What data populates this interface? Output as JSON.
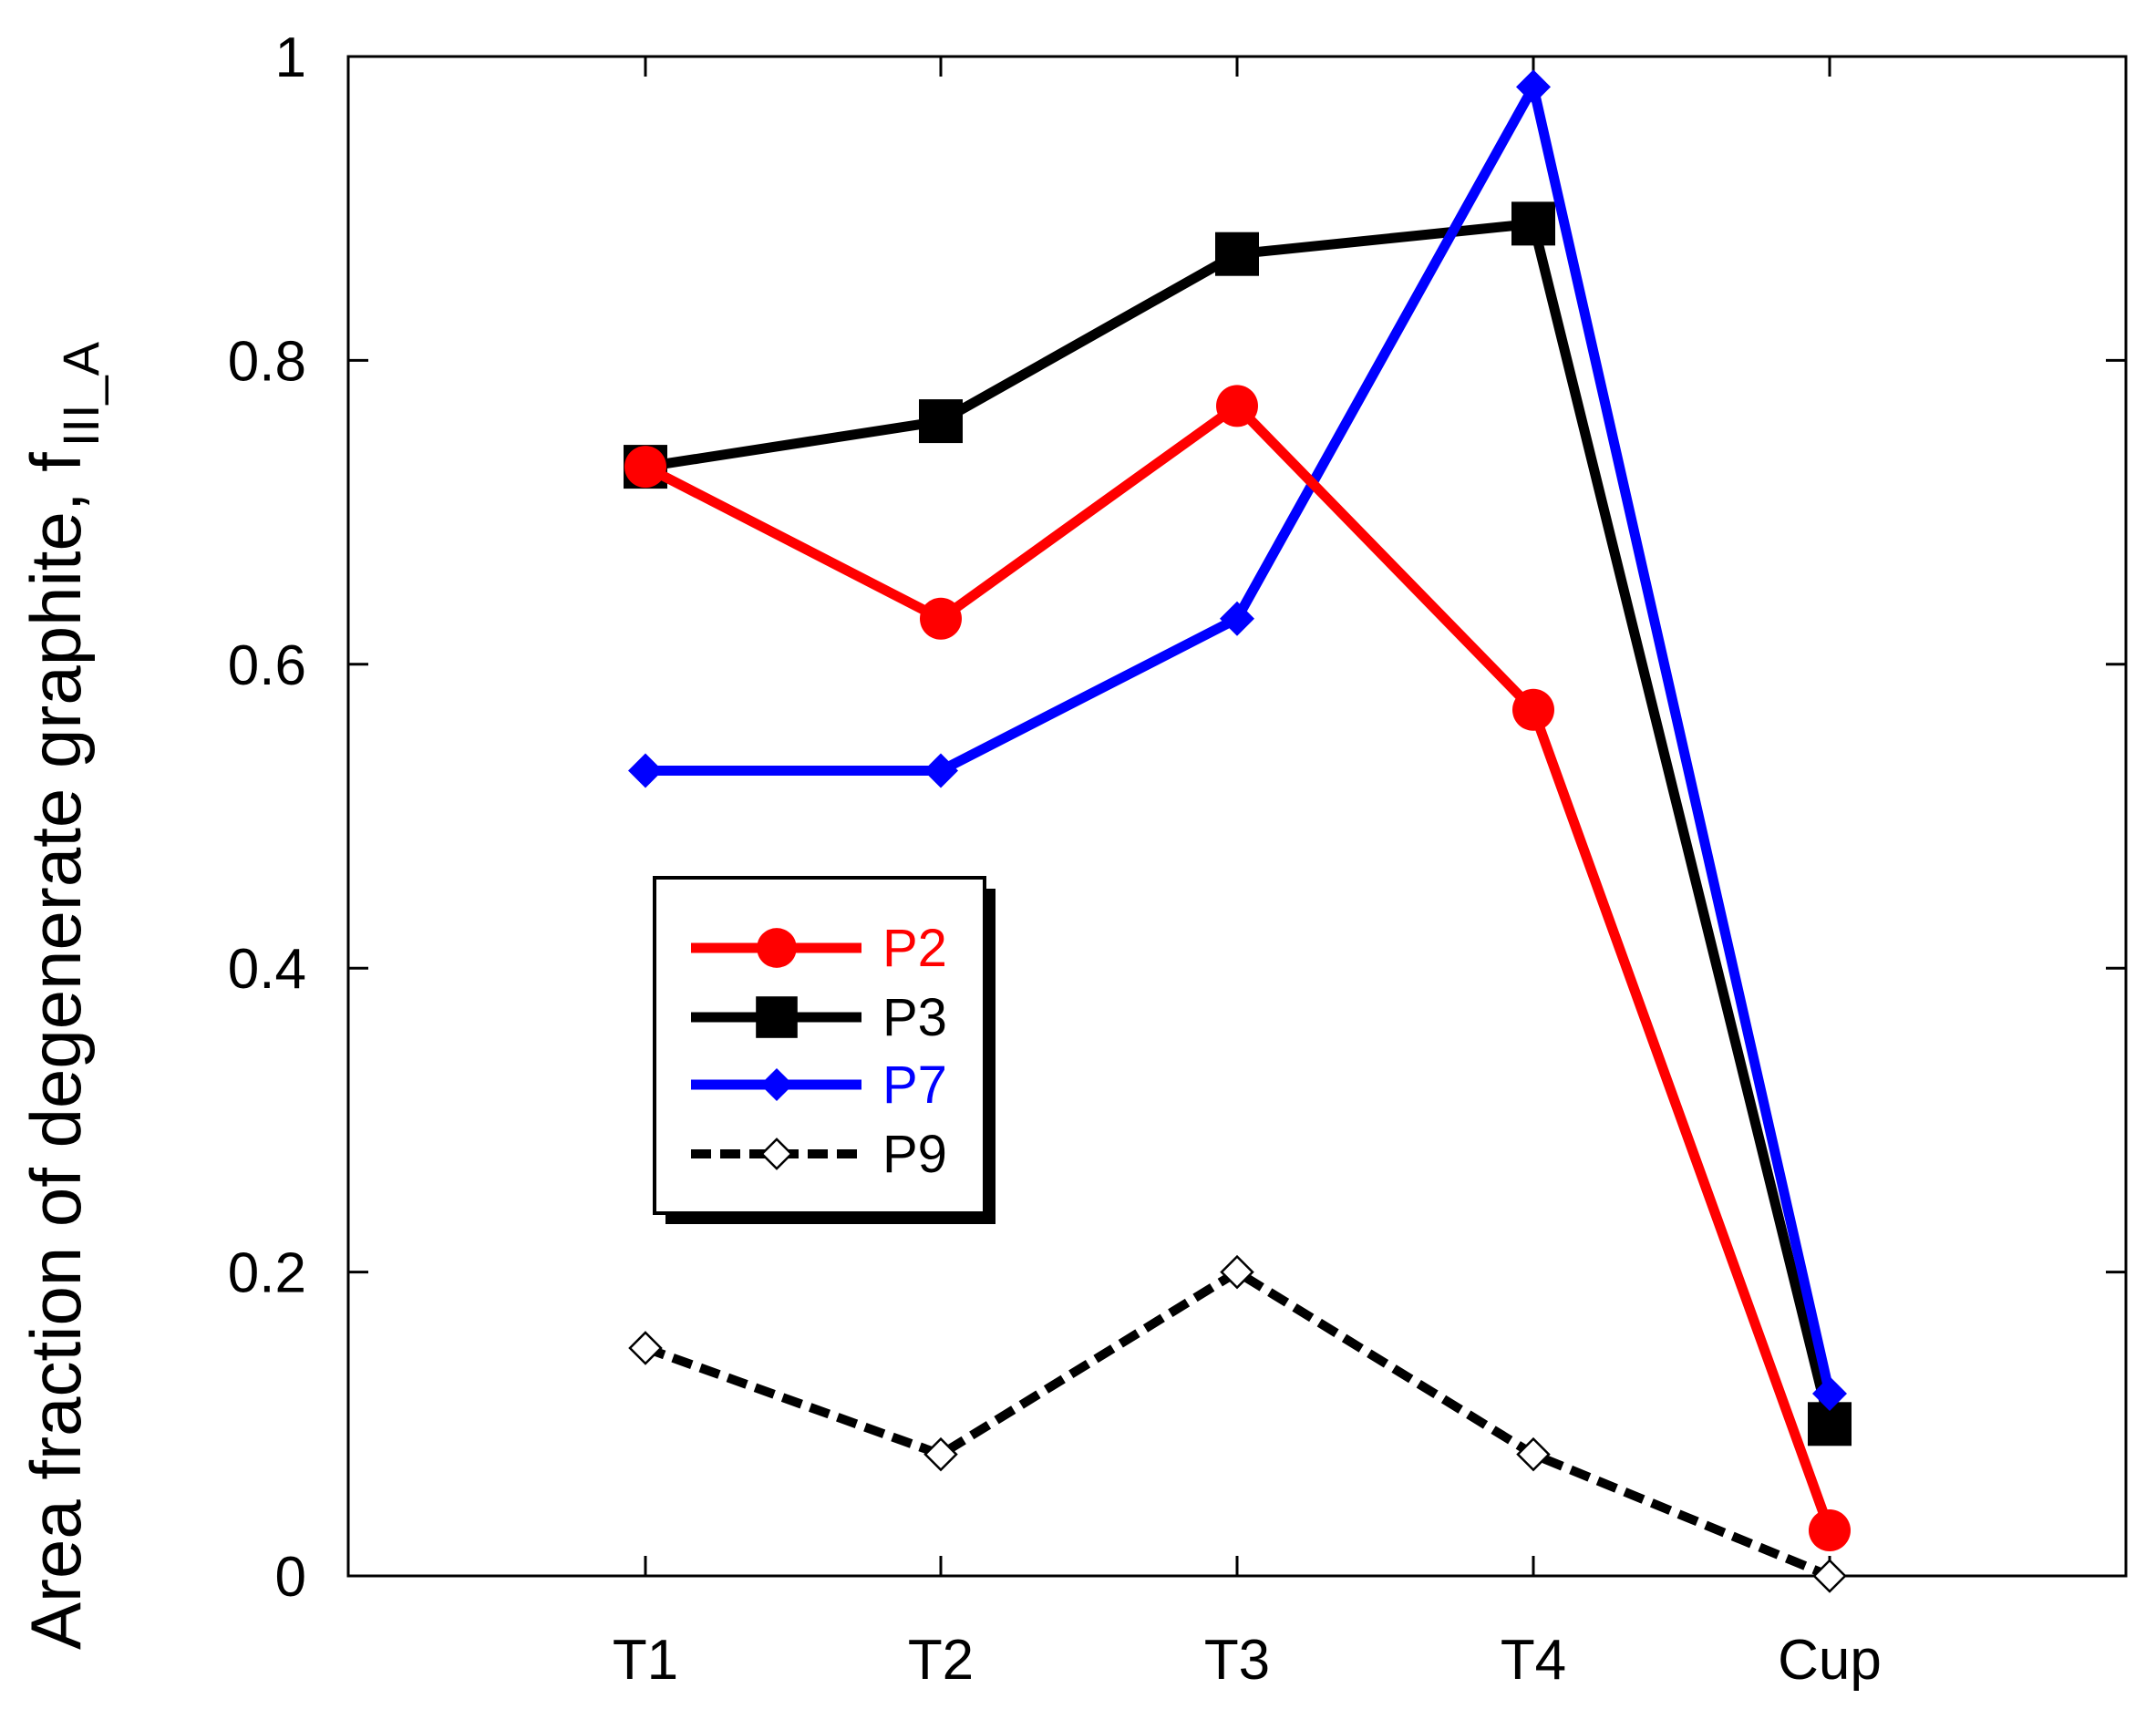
{
  "chart_data": {
    "type": "line",
    "title": "",
    "xlabel": "",
    "ylabel": "Area fraction of degenerate graphite, f",
    "ylabel_subscript": "III_A",
    "categories": [
      "T1",
      "T2",
      "T3",
      "T4",
      "Cup"
    ],
    "ylim": [
      0,
      1
    ],
    "yticks": [
      "0",
      "0.2",
      "0.4",
      "0.6",
      "0.8",
      "1"
    ],
    "grid": false,
    "legend_position": "center-left",
    "series": [
      {
        "name": "P2",
        "color": "#ff0000",
        "marker": "circle",
        "line": "solid",
        "values": [
          0.73,
          0.63,
          0.77,
          0.57,
          0.03
        ]
      },
      {
        "name": "P3",
        "color": "#000000",
        "marker": "square",
        "line": "solid",
        "values": [
          0.73,
          0.76,
          0.87,
          0.89,
          0.1
        ]
      },
      {
        "name": "P7",
        "color": "#0000ff",
        "marker": "diamond",
        "line": "solid",
        "values": [
          0.53,
          0.53,
          0.63,
          0.98,
          0.12
        ]
      },
      {
        "name": "P9",
        "color": "#000000",
        "marker": "diamond-open",
        "line": "dashed",
        "values": [
          0.15,
          0.08,
          0.2,
          0.08,
          0.0
        ]
      }
    ]
  }
}
